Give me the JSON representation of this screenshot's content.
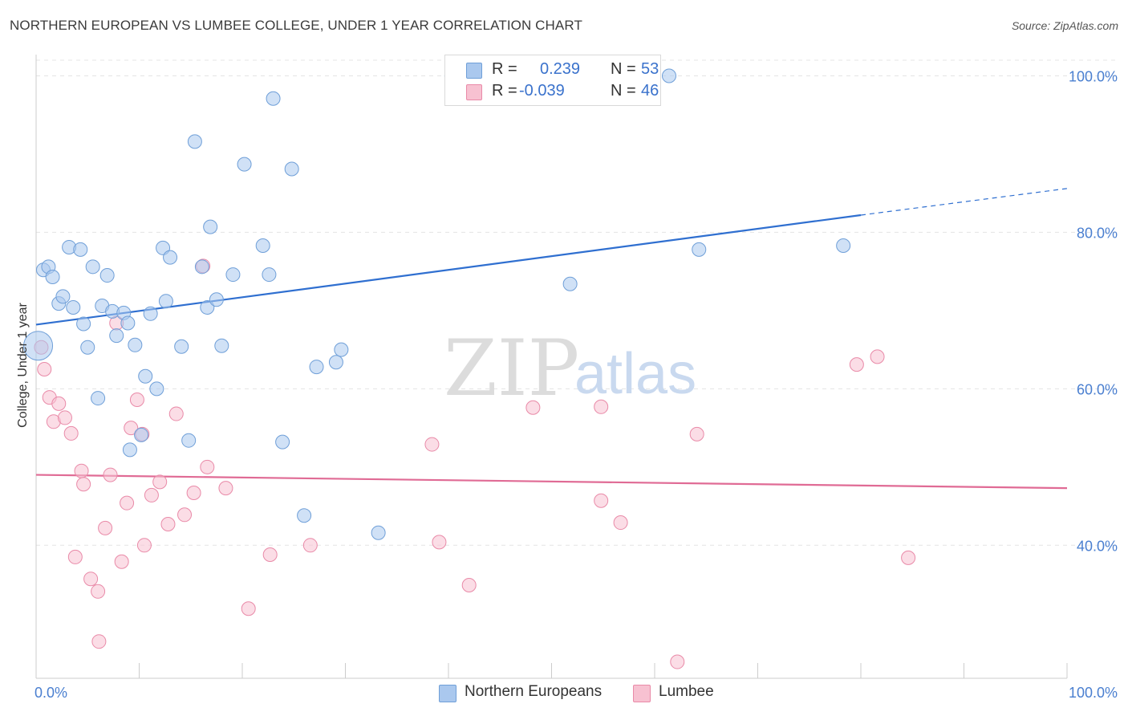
{
  "title": "NORTHERN EUROPEAN VS LUMBEE COLLEGE, UNDER 1 YEAR CORRELATION CHART",
  "source": "Source: ZipAtlas.com",
  "watermark": {
    "zip": "ZIP",
    "atlas": "atlas"
  },
  "legend": {
    "series1": {
      "r_label": "R =",
      "r_value": "0.239",
      "n_label": "N =",
      "n_value": "53"
    },
    "series2": {
      "r_label": "R =",
      "r_value": "-0.039",
      "n_label": "N =",
      "n_value": "46"
    }
  },
  "bottom_legend": {
    "series1": "Northern Europeans",
    "series2": "Lumbee"
  },
  "colors": {
    "blue_fill": "#aac8ee",
    "blue_stroke": "#6f9fd8",
    "blue_line": "#2f6fd0",
    "pink_fill": "#f7c1d1",
    "pink_stroke": "#e98aa8",
    "pink_line": "#e06b95",
    "grid": "#e4e4e4",
    "tick_text": "#4a7fd0"
  },
  "chart_data": {
    "type": "scatter",
    "title": "NORTHERN EUROPEAN VS LUMBEE COLLEGE, UNDER 1 YEAR CORRELATION CHART",
    "xlabel": "",
    "ylabel": "College, Under 1 year",
    "xlim": [
      0,
      100
    ],
    "ylim": [
      23,
      102
    ],
    "x_tick_labels": [
      "0.0%",
      "100.0%"
    ],
    "y_ticks": [
      40,
      60,
      80,
      100
    ],
    "y_tick_labels": [
      "40.0%",
      "60.0%",
      "80.0%",
      "100.0%"
    ],
    "grid": true,
    "legend_position": "top-center",
    "series": [
      {
        "name": "Northern Europeans",
        "r": 0.239,
        "n": 53,
        "trend": {
          "x0": 0,
          "y0": 68.2,
          "x1": 80,
          "y1": 82.2,
          "dashed_to_x": 100,
          "dashed_to_y": 85.6
        },
        "points": [
          {
            "x": 0.2,
            "y": 65.5,
            "big": true
          },
          {
            "x": 0.7,
            "y": 75.2
          },
          {
            "x": 1.2,
            "y": 75.6
          },
          {
            "x": 1.6,
            "y": 74.3
          },
          {
            "x": 2.2,
            "y": 70.9
          },
          {
            "x": 2.6,
            "y": 71.8
          },
          {
            "x": 3.2,
            "y": 78.1
          },
          {
            "x": 3.6,
            "y": 70.4
          },
          {
            "x": 4.3,
            "y": 77.8
          },
          {
            "x": 4.6,
            "y": 68.3
          },
          {
            "x": 5.0,
            "y": 65.3
          },
          {
            "x": 5.5,
            "y": 75.6
          },
          {
            "x": 6.0,
            "y": 58.8
          },
          {
            "x": 6.4,
            "y": 70.6
          },
          {
            "x": 6.9,
            "y": 74.5
          },
          {
            "x": 7.4,
            "y": 69.9
          },
          {
            "x": 7.8,
            "y": 66.8
          },
          {
            "x": 8.5,
            "y": 69.7
          },
          {
            "x": 8.9,
            "y": 68.4
          },
          {
            "x": 9.1,
            "y": 52.2
          },
          {
            "x": 9.6,
            "y": 65.6
          },
          {
            "x": 10.2,
            "y": 54.1
          },
          {
            "x": 10.6,
            "y": 61.6
          },
          {
            "x": 11.1,
            "y": 69.6
          },
          {
            "x": 11.7,
            "y": 60.0
          },
          {
            "x": 12.3,
            "y": 78.0
          },
          {
            "x": 12.6,
            "y": 71.2
          },
          {
            "x": 13.0,
            "y": 76.8
          },
          {
            "x": 14.1,
            "y": 65.4
          },
          {
            "x": 14.8,
            "y": 53.4
          },
          {
            "x": 15.4,
            "y": 91.6
          },
          {
            "x": 16.1,
            "y": 75.6
          },
          {
            "x": 16.6,
            "y": 70.4
          },
          {
            "x": 16.9,
            "y": 80.7
          },
          {
            "x": 17.5,
            "y": 71.4
          },
          {
            "x": 18.0,
            "y": 65.5
          },
          {
            "x": 19.1,
            "y": 74.6
          },
          {
            "x": 20.2,
            "y": 88.7
          },
          {
            "x": 22.0,
            "y": 78.3
          },
          {
            "x": 22.6,
            "y": 74.6
          },
          {
            "x": 23.0,
            "y": 97.1
          },
          {
            "x": 23.9,
            "y": 53.2
          },
          {
            "x": 24.8,
            "y": 88.1
          },
          {
            "x": 26.0,
            "y": 43.8
          },
          {
            "x": 27.2,
            "y": 62.8
          },
          {
            "x": 29.1,
            "y": 63.4
          },
          {
            "x": 29.6,
            "y": 65.0
          },
          {
            "x": 33.2,
            "y": 41.6
          },
          {
            "x": 40.3,
            "y": 100.0
          },
          {
            "x": 51.8,
            "y": 73.4
          },
          {
            "x": 61.4,
            "y": 100.0
          },
          {
            "x": 64.3,
            "y": 77.8
          },
          {
            "x": 78.3,
            "y": 78.3
          }
        ]
      },
      {
        "name": "Lumbee",
        "r": -0.039,
        "n": 46,
        "trend": {
          "x0": 0,
          "y0": 49.0,
          "x1": 100,
          "y1": 47.3
        },
        "points": [
          {
            "x": 0.5,
            "y": 65.3
          },
          {
            "x": 0.8,
            "y": 62.5
          },
          {
            "x": 1.3,
            "y": 58.9
          },
          {
            "x": 1.7,
            "y": 55.8
          },
          {
            "x": 2.2,
            "y": 58.1
          },
          {
            "x": 2.8,
            "y": 56.3
          },
          {
            "x": 3.4,
            "y": 54.3
          },
          {
            "x": 3.8,
            "y": 38.5
          },
          {
            "x": 4.4,
            "y": 49.5
          },
          {
            "x": 4.6,
            "y": 47.8
          },
          {
            "x": 5.3,
            "y": 35.7
          },
          {
            "x": 6.0,
            "y": 34.1
          },
          {
            "x": 6.1,
            "y": 27.7
          },
          {
            "x": 6.7,
            "y": 42.2
          },
          {
            "x": 7.2,
            "y": 49.0
          },
          {
            "x": 7.8,
            "y": 68.4
          },
          {
            "x": 8.3,
            "y": 37.9
          },
          {
            "x": 8.8,
            "y": 45.4
          },
          {
            "x": 9.2,
            "y": 55.0
          },
          {
            "x": 9.8,
            "y": 58.6
          },
          {
            "x": 10.3,
            "y": 54.2
          },
          {
            "x": 10.5,
            "y": 40.0
          },
          {
            "x": 11.2,
            "y": 46.4
          },
          {
            "x": 12.0,
            "y": 48.1
          },
          {
            "x": 12.8,
            "y": 42.7
          },
          {
            "x": 13.6,
            "y": 56.8
          },
          {
            "x": 14.4,
            "y": 43.9
          },
          {
            "x": 15.3,
            "y": 46.7
          },
          {
            "x": 16.2,
            "y": 75.7
          },
          {
            "x": 16.6,
            "y": 50.0
          },
          {
            "x": 18.4,
            "y": 47.3
          },
          {
            "x": 20.6,
            "y": 31.9
          },
          {
            "x": 22.7,
            "y": 38.8
          },
          {
            "x": 26.6,
            "y": 40.0
          },
          {
            "x": 38.4,
            "y": 52.9
          },
          {
            "x": 39.1,
            "y": 40.4
          },
          {
            "x": 42.0,
            "y": 34.9
          },
          {
            "x": 48.2,
            "y": 57.6
          },
          {
            "x": 54.8,
            "y": 57.7
          },
          {
            "x": 54.8,
            "y": 45.7
          },
          {
            "x": 56.7,
            "y": 42.9
          },
          {
            "x": 62.2,
            "y": 25.1
          },
          {
            "x": 64.1,
            "y": 54.2
          },
          {
            "x": 79.6,
            "y": 63.1
          },
          {
            "x": 81.6,
            "y": 64.1
          },
          {
            "x": 84.6,
            "y": 38.4
          }
        ]
      }
    ]
  }
}
